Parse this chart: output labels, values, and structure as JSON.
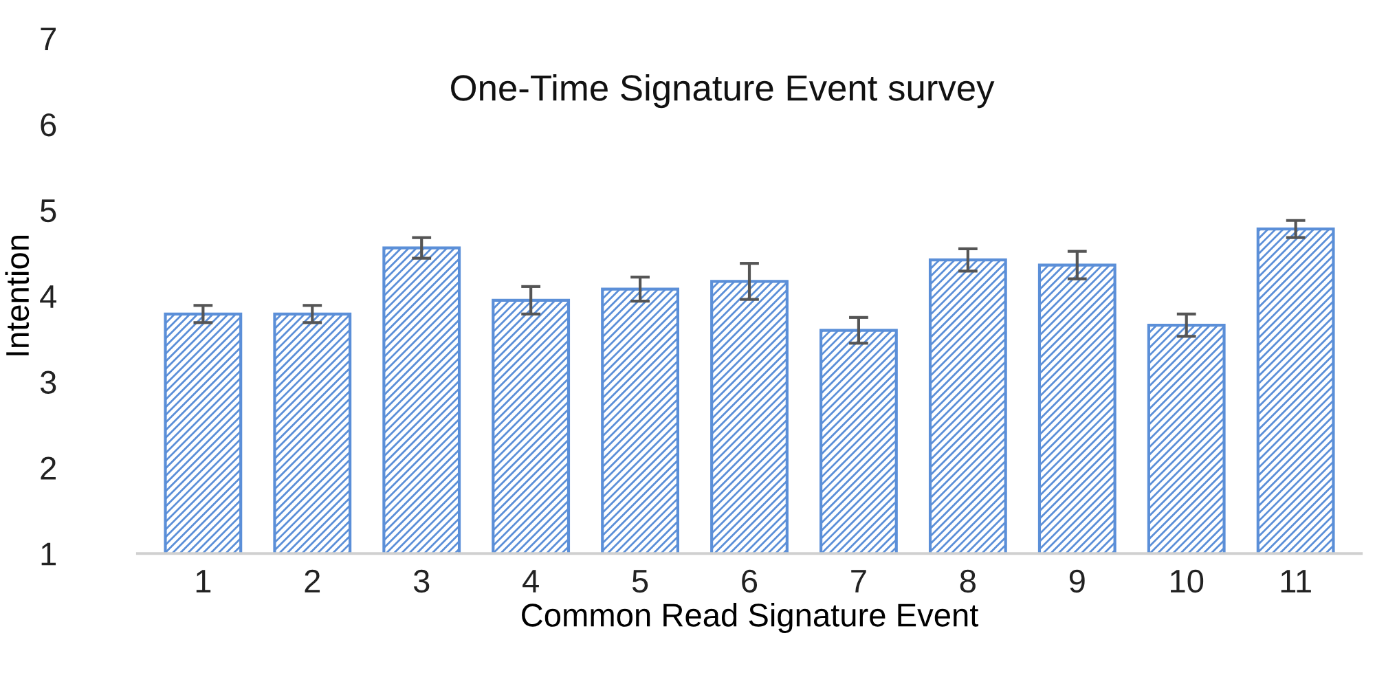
{
  "chart_data": {
    "type": "bar",
    "title": "One-Time Signature Event survey",
    "xlabel": "Common Read Signature Event",
    "ylabel": "Intention",
    "categories": [
      "1",
      "2",
      "3",
      "4",
      "5",
      "6",
      "7",
      "8",
      "9",
      "10",
      "11"
    ],
    "values": [
      3.79,
      3.79,
      4.56,
      3.95,
      4.08,
      4.17,
      3.6,
      4.42,
      4.36,
      3.66,
      4.78
    ],
    "errors": [
      0.1,
      0.1,
      0.12,
      0.16,
      0.14,
      0.21,
      0.15,
      0.13,
      0.16,
      0.13,
      0.1
    ],
    "color": "#5b8fd8",
    "ylim": [
      1,
      7
    ],
    "yticks": [
      1,
      2,
      3,
      4,
      5,
      6,
      7
    ],
    "grid": false,
    "legend": false
  }
}
